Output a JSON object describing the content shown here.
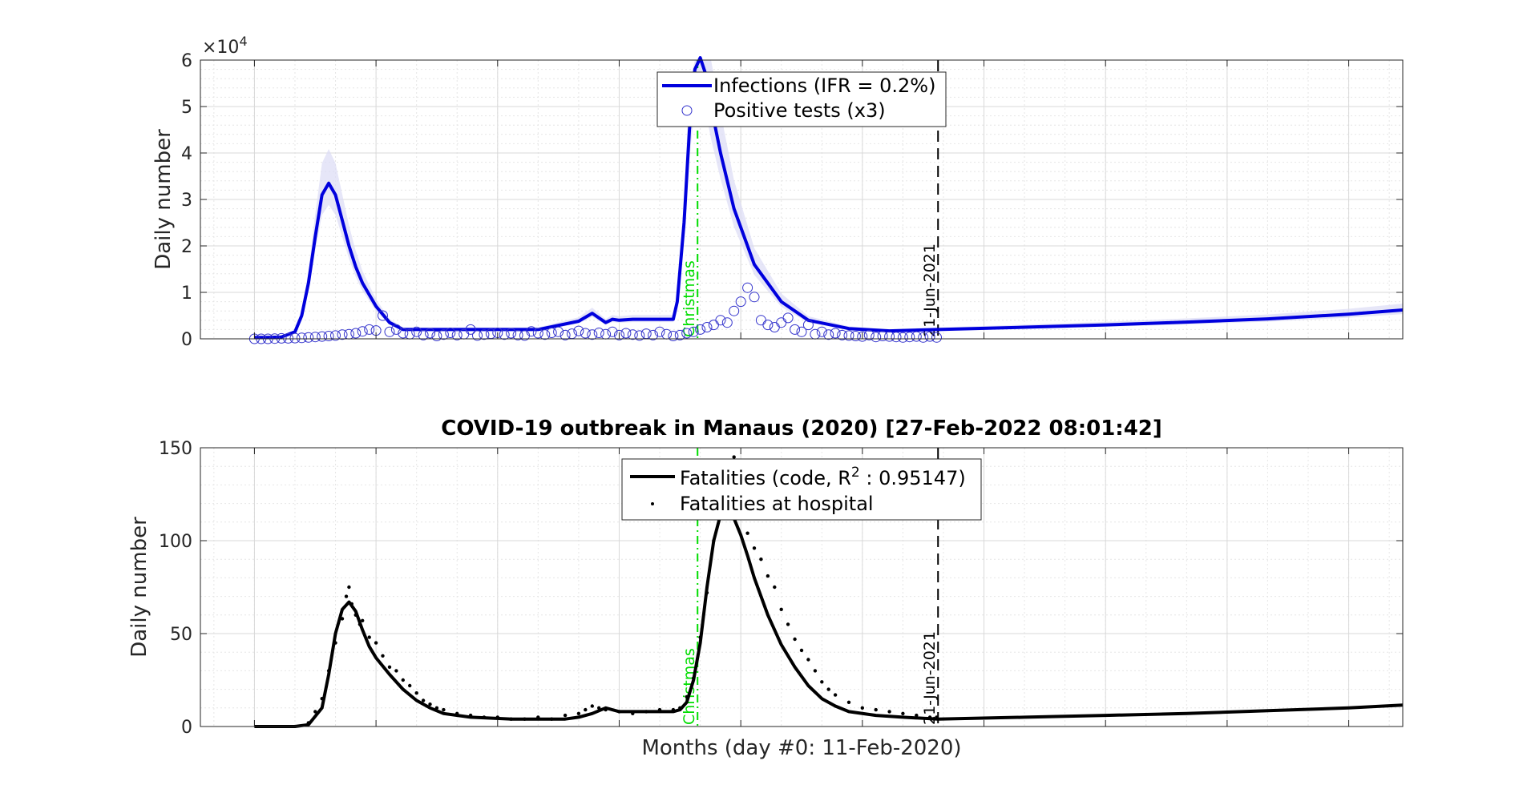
{
  "figure": {
    "title": "COVID-19 outbreak in Manaus (2020) [27-Feb-2022 08:01:42]",
    "xlabel": "Months (day #0: 11-Feb-2020)"
  },
  "chart_data": [
    {
      "type": "line",
      "ylabel": "Daily number",
      "y_multiplier_label": "×10",
      "y_multiplier_exponent": "4",
      "xlim": [
        -50,
        840
      ],
      "ylim": [
        0,
        60000
      ],
      "y_ticks": [
        0,
        10000,
        20000,
        30000,
        40000,
        50000,
        60000
      ],
      "y_tick_labels": [
        "0",
        "1",
        "2",
        "3",
        "4",
        "5",
        "6"
      ],
      "grid": true,
      "legend_position": "top-center",
      "legend": [
        "Infections (IFR = 0.2%)",
        "Positive tests (x3)"
      ],
      "colors": {
        "line": "#0000dd",
        "markers": "#3333cc",
        "band": "#dcdcf5",
        "christmas": "#00dd00",
        "date_line": "#000000"
      },
      "vlines": [
        {
          "label": "Christmas",
          "x": 318,
          "color": "#00dd00",
          "style": "dashdot"
        },
        {
          "label": "21-Jun-2021",
          "x": 496,
          "color": "#000000",
          "style": "dashed"
        }
      ],
      "series": [
        {
          "name": "Infections (IFR = 0.2%)",
          "style": "line",
          "x": [
            -10,
            0,
            10,
            20,
            25,
            30,
            35,
            40,
            45,
            50,
            55,
            60,
            65,
            70,
            80,
            90,
            100,
            110,
            120,
            150,
            200,
            230,
            240,
            250,
            255,
            260,
            270,
            280,
            290,
            300,
            303,
            308,
            312,
            316,
            320,
            324,
            328,
            335,
            345,
            360,
            380,
            400,
            430,
            460,
            496,
            560,
            620,
            680,
            740,
            800,
            840
          ],
          "values": [
            300,
            300,
            400,
            1500,
            5000,
            12000,
            22000,
            31000,
            33500,
            31000,
            25500,
            20000,
            15500,
            12000,
            7000,
            3500,
            2000,
            2000,
            2000,
            2000,
            2000,
            3800,
            5500,
            3500,
            4200,
            4000,
            4200,
            4200,
            4200,
            4200,
            8000,
            25000,
            45000,
            58000,
            60500,
            57000,
            50000,
            40000,
            28000,
            16000,
            8000,
            4000,
            2200,
            1700,
            2000,
            2500,
            3000,
            3600,
            4300,
            5300,
            6200
          ]
        },
        {
          "name": "Positive tests (x3)",
          "style": "markers",
          "x": [
            -10,
            -5,
            0,
            5,
            10,
            15,
            20,
            25,
            30,
            35,
            40,
            45,
            50,
            55,
            60,
            65,
            70,
            75,
            80,
            85,
            90,
            95,
            100,
            105,
            110,
            115,
            120,
            125,
            130,
            135,
            140,
            145,
            150,
            155,
            160,
            165,
            170,
            175,
            180,
            185,
            190,
            195,
            200,
            205,
            210,
            215,
            220,
            225,
            230,
            235,
            240,
            245,
            250,
            255,
            260,
            265,
            270,
            275,
            280,
            285,
            290,
            295,
            300,
            305,
            310,
            315,
            320,
            325,
            330,
            335,
            340,
            345,
            350,
            355,
            360,
            365,
            370,
            375,
            380,
            385,
            390,
            395,
            400,
            405,
            410,
            415,
            420,
            425,
            430,
            435,
            440,
            445,
            450,
            455,
            460,
            465,
            470,
            475,
            480,
            485,
            490,
            495
          ],
          "values": [
            0,
            0,
            0,
            50,
            100,
            100,
            150,
            200,
            300,
            400,
            500,
            600,
            700,
            900,
            1000,
            1200,
            1600,
            2000,
            1800,
            5000,
            1500,
            2000,
            1200,
            1000,
            1500,
            800,
            1200,
            600,
            900,
            1300,
            800,
            1000,
            2000,
            700,
            900,
            1100,
            1300,
            900,
            1200,
            800,
            700,
            1600,
            1200,
            900,
            1300,
            1500,
            800,
            1100,
            1700,
            1200,
            900,
            1300,
            1000,
            1500,
            800,
            1200,
            900,
            700,
            1100,
            800,
            1500,
            1000,
            600,
            800,
            1200,
            1500,
            2000,
            2500,
            3000,
            4000,
            3500,
            6000,
            8000,
            11000,
            9000,
            4000,
            3000,
            2500,
            3500,
            4500,
            2000,
            1500,
            3000,
            1000,
            1500,
            900,
            1200,
            800,
            700,
            600,
            500,
            800,
            400,
            600,
            500,
            400,
            300,
            400,
            500,
            300,
            500,
            300
          ]
        }
      ]
    },
    {
      "type": "line",
      "title": "COVID-19 outbreak in Manaus (2020) [27-Feb-2022 08:01:42]",
      "xlabel": "Months (day #0: 11-Feb-2020)",
      "ylabel": "Daily number",
      "xlim": [
        -50,
        840
      ],
      "ylim": [
        0,
        150
      ],
      "y_ticks": [
        0,
        50,
        100,
        150
      ],
      "y_tick_labels": [
        "0",
        "50",
        "100",
        "150"
      ],
      "grid": true,
      "legend_position": "top-center",
      "legend": [
        "Fatalities (code, R",
        "2",
        " : 0.95147)",
        "Fatalities at hospital"
      ],
      "vlines": [
        {
          "label": "Christmas",
          "x": 318,
          "color": "#00dd00",
          "style": "dashdot"
        },
        {
          "label": "21-Jun-2021",
          "x": 496,
          "color": "#000000",
          "style": "dashed"
        }
      ],
      "series": [
        {
          "name": "Fatalities (code, R^2 : 0.95147)",
          "style": "line",
          "x": [
            -10,
            0,
            10,
            20,
            30,
            40,
            45,
            50,
            55,
            60,
            65,
            70,
            75,
            80,
            90,
            100,
            110,
            120,
            130,
            150,
            180,
            200,
            220,
            230,
            240,
            250,
            260,
            270,
            280,
            290,
            300,
            305,
            310,
            315,
            320,
            325,
            330,
            335,
            340,
            345,
            350,
            355,
            360,
            370,
            380,
            390,
            400,
            410,
            420,
            430,
            450,
            470,
            496,
            560,
            620,
            680,
            740,
            800,
            840
          ],
          "values": [
            0,
            0,
            0,
            0,
            1,
            10,
            28,
            50,
            63,
            67,
            62,
            52,
            43,
            37,
            28,
            20,
            14,
            10,
            7,
            5,
            4,
            4,
            4,
            5,
            7,
            10,
            8,
            8,
            8,
            8,
            8,
            9,
            13,
            25,
            45,
            75,
            100,
            114,
            117,
            112,
            103,
            92,
            80,
            60,
            44,
            32,
            22,
            15,
            11,
            8,
            6,
            5,
            4,
            5,
            6,
            7,
            8.5,
            10,
            11.5
          ]
        },
        {
          "name": "Fatalities at hospital",
          "style": "points",
          "x": [
            30,
            35,
            40,
            45,
            50,
            55,
            58,
            60,
            62,
            65,
            68,
            70,
            75,
            80,
            85,
            90,
            95,
            100,
            105,
            110,
            115,
            120,
            125,
            130,
            140,
            150,
            160,
            170,
            180,
            190,
            200,
            210,
            220,
            230,
            235,
            240,
            245,
            250,
            260,
            270,
            280,
            290,
            300,
            305,
            310,
            315,
            320,
            325,
            330,
            335,
            340,
            345,
            350,
            355,
            360,
            365,
            370,
            375,
            380,
            385,
            390,
            395,
            400,
            405,
            410,
            415,
            420,
            430,
            440,
            450,
            460,
            470,
            480,
            490,
            495
          ],
          "values": [
            2,
            8,
            15,
            30,
            45,
            58,
            70,
            75,
            66,
            60,
            55,
            57,
            48,
            45,
            38,
            32,
            30,
            25,
            22,
            18,
            14,
            12,
            10,
            9,
            7,
            6,
            5,
            5,
            4,
            4,
            5,
            4,
            6,
            7,
            9,
            11,
            10,
            9,
            8,
            7,
            8,
            9,
            9,
            10,
            16,
            26,
            48,
            72,
            100,
            118,
            125,
            145,
            122,
            104,
            96,
            90,
            81,
            75,
            63,
            55,
            47,
            41,
            36,
            30,
            24,
            20,
            17,
            13,
            10,
            9,
            8,
            7,
            6,
            5,
            5
          ]
        }
      ]
    }
  ]
}
